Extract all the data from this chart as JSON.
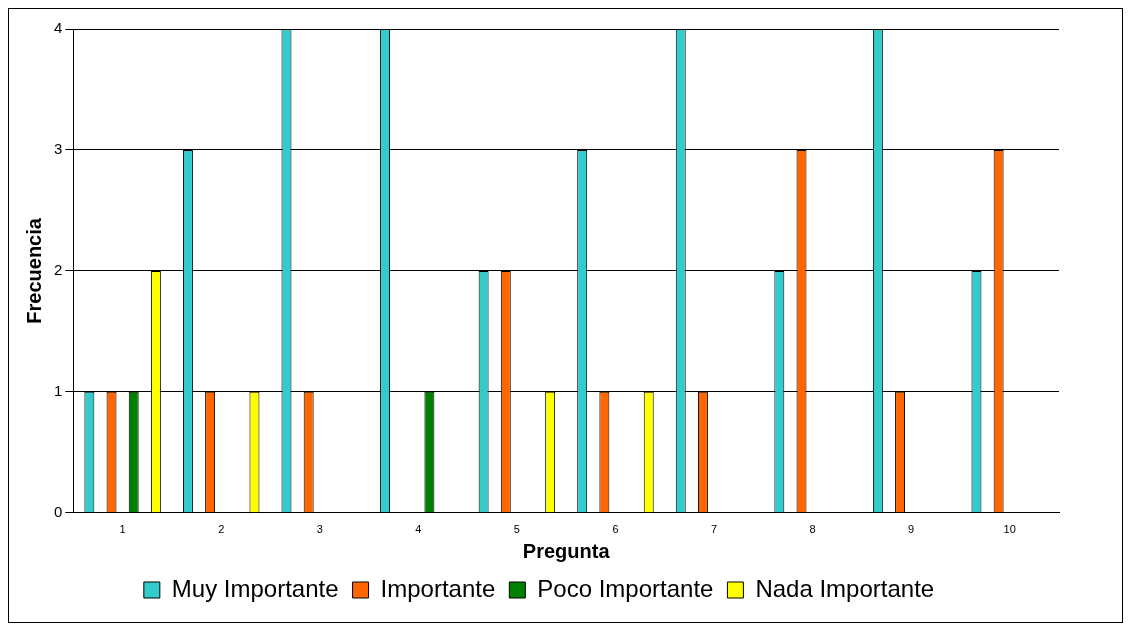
{
  "chart_data": {
    "type": "bar",
    "xlabel": "Pregunta",
    "ylabel": "Frecuencia",
    "categories": [
      "1",
      "2",
      "3",
      "4",
      "5",
      "6",
      "7",
      "8",
      "9",
      "10"
    ],
    "series": [
      {
        "name": "Muy Importante",
        "color": "#33cccc",
        "values": [
          1,
          3,
          4,
          4,
          2,
          3,
          4,
          2,
          4,
          2
        ]
      },
      {
        "name": "Importante",
        "color": "#ff6600",
        "values": [
          1,
          1,
          1,
          0,
          2,
          1,
          1,
          3,
          1,
          3
        ]
      },
      {
        "name": "Poco Importante",
        "color": "#008000",
        "values": [
          1,
          0,
          0,
          1,
          0,
          0,
          0,
          0,
          0,
          0
        ]
      },
      {
        "name": "Nada Importante",
        "color": "#ffff00",
        "values": [
          2,
          1,
          0,
          0,
          1,
          1,
          0,
          0,
          0,
          0
        ]
      }
    ],
    "ylim": [
      0,
      4
    ],
    "yticks": [
      0,
      1,
      2,
      3,
      4
    ],
    "grid": "y",
    "legend": "bottom"
  }
}
